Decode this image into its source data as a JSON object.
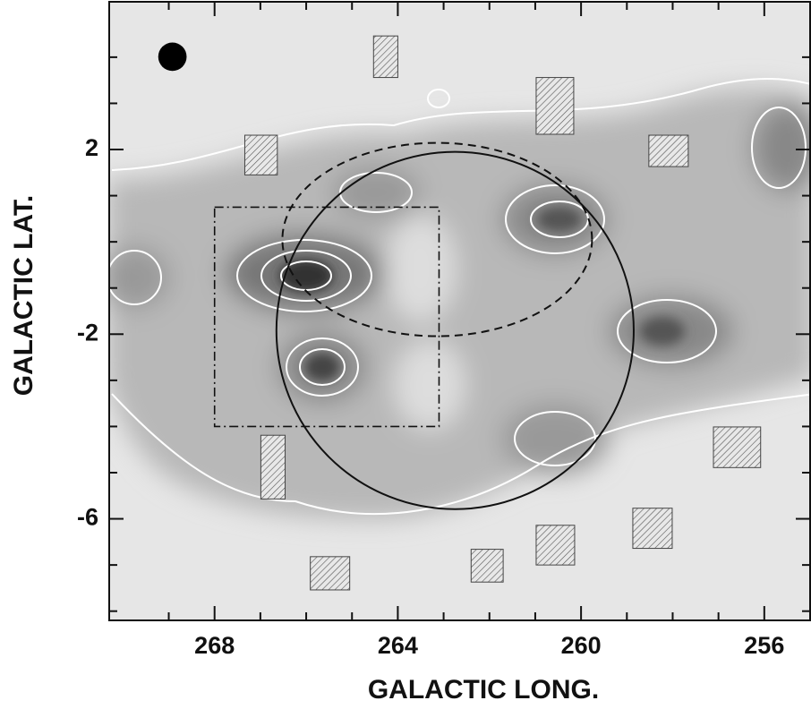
{
  "chart_data": {
    "type": "map",
    "xlabel": "GALACTIC LONG.",
    "ylabel": "GALACTIC LAT.",
    "xlim": [
      270.3,
      255
    ],
    "ylim": [
      -8.2,
      5.2
    ],
    "xticks": [
      268,
      264,
      260,
      256
    ],
    "yticks": [
      2,
      -2,
      -6
    ],
    "xminorticks": [
      269,
      267,
      266,
      265,
      263,
      262,
      261,
      259,
      258,
      257
    ],
    "yminorticks": [
      4,
      3,
      1,
      0,
      -1,
      -3,
      -4,
      -5,
      -7,
      -8
    ],
    "beam": {
      "center": [
        268.92,
        4.01
      ],
      "radius": 0.31
    },
    "circle": {
      "center": [
        262.75,
        -1.92
      ],
      "radius": 3.9
    },
    "ellipse": {
      "center": [
        263.14,
        0.05
      ],
      "rx": 3.38,
      "ry": 2.11
    },
    "box": {
      "l": [
        268,
        263.1
      ],
      "b": [
        0.75,
        -4.0
      ]
    },
    "fields": [
      [
        264.53,
        264.0,
        4.46,
        3.56
      ],
      [
        260.98,
        260.16,
        3.56,
        2.33
      ],
      [
        267.34,
        266.63,
        2.31,
        1.45
      ],
      [
        258.52,
        257.66,
        2.31,
        1.63
      ],
      [
        266.99,
        266.46,
        -4.19,
        -5.57
      ],
      [
        257.11,
        256.08,
        -4.01,
        -4.89
      ],
      [
        258.87,
        258.01,
        -5.77,
        -6.64
      ],
      [
        260.98,
        260.14,
        -6.14,
        -7.0
      ],
      [
        262.4,
        261.7,
        -6.66,
        -7.37
      ],
      [
        265.91,
        265.05,
        -6.82,
        -7.54
      ]
    ]
  }
}
